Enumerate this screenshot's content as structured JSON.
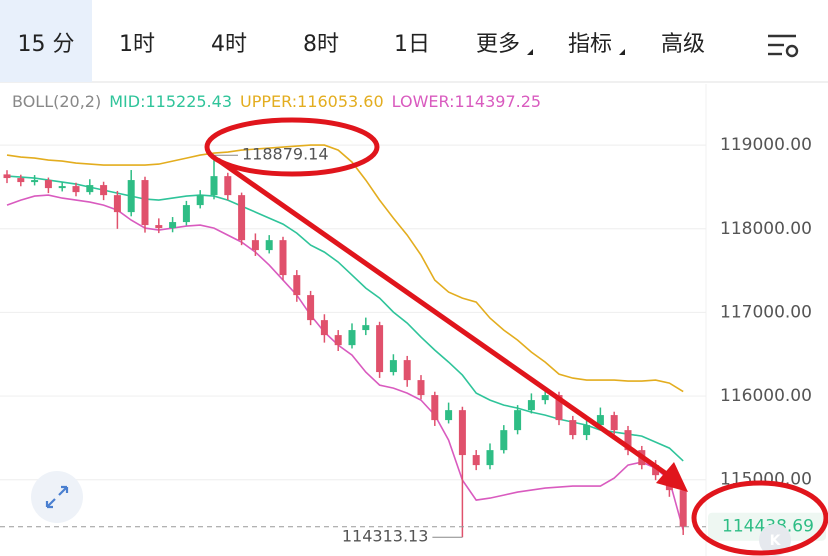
{
  "toolbar": {
    "tabs": [
      "15 分",
      "1时",
      "4时",
      "8时",
      "1日",
      "更多",
      "指标",
      "高级"
    ],
    "selected": 0
  },
  "chart_data": {
    "type": "candlestick",
    "indicator": "BOLL(20,2)",
    "up_color": "#2ebd85",
    "down_color": "#e0516c",
    "open": [
      118650,
      118606,
      118558,
      118582,
      118486,
      118510,
      118438,
      118522,
      118402,
      118199,
      118582,
      118044,
      118008,
      118080,
      118283,
      118402,
      118629,
      118402,
      117864,
      117745,
      117864,
      117446,
      117207,
      116908,
      116729,
      116609,
      116789,
      116848,
      116287,
      116430,
      116191,
      116012,
      115713,
      115832,
      115295,
      115175,
      115354,
      115593,
      115832,
      115952,
      116012,
      115713,
      115534,
      115653,
      115773,
      115593,
      115354,
      115175,
      115055,
      114876
    ],
    "high": [
      118700,
      118646,
      118642,
      118612,
      118560,
      118550,
      118592,
      118562,
      118452,
      118702,
      118622,
      118124,
      118140,
      118333,
      118462,
      118879.14,
      118669,
      118432,
      117944,
      117924,
      117904,
      117506,
      117257,
      116978,
      116789,
      116869,
      116938,
      116888,
      116500,
      116480,
      116251,
      116052,
      115922,
      115872,
      115355,
      115434,
      115653,
      115892,
      116032,
      116082,
      116052,
      115763,
      115723,
      115863,
      115813,
      115643,
      115404,
      115235,
      115105,
      114956
    ],
    "low": [
      118546,
      118508,
      118518,
      118426,
      118446,
      118388,
      118408,
      118342,
      117999,
      118149,
      117954,
      117948,
      117958,
      118040,
      118243,
      118352,
      118342,
      117804,
      117675,
      117705,
      117386,
      117127,
      116848,
      116639,
      116539,
      116569,
      116729,
      116217,
      116247,
      116111,
      115962,
      115643,
      115673,
      114313.13,
      115115,
      115125,
      115314,
      115543,
      115792,
      115902,
      115653,
      115484,
      115474,
      115613,
      115543,
      115294,
      115125,
      114995,
      114796,
      114340
    ],
    "close": [
      118606,
      118558,
      118582,
      118486,
      118510,
      118438,
      118522,
      118402,
      118199,
      118582,
      118044,
      118008,
      118080,
      118283,
      118402,
      118629,
      118402,
      117864,
      117745,
      117864,
      117446,
      117207,
      116908,
      116729,
      116609,
      116789,
      116848,
      116287,
      116430,
      116191,
      116012,
      115713,
      115832,
      115295,
      115175,
      115354,
      115593,
      115832,
      115952,
      116012,
      115713,
      115534,
      115653,
      115773,
      115593,
      115354,
      115175,
      115055,
      114876,
      114438.69
    ],
    "series": [
      {
        "name": "MID",
        "legend": "MID:115225.43",
        "color": "#2fc49a",
        "values": [
          118629,
          118618,
          118606,
          118582,
          118558,
          118534,
          118498,
          118462,
          118426,
          118390,
          118355,
          118343,
          118367,
          118390,
          118402,
          118390,
          118343,
          118271,
          118199,
          118127,
          118056,
          117948,
          117805,
          117721,
          117601,
          117446,
          117291,
          117171,
          117004,
          116872,
          116705,
          116550,
          116406,
          116251,
          116036,
          115952,
          115892,
          115856,
          115809,
          115773,
          115725,
          115689,
          115653,
          115593,
          115569,
          115546,
          115522,
          115450,
          115378,
          115225.43
        ]
      },
      {
        "name": "UPPER",
        "legend": "UPPER:116053.60",
        "color": "#e3ad1f",
        "values": [
          118880,
          118857,
          118845,
          118821,
          118809,
          118785,
          118773,
          118761,
          118761,
          118761,
          118761,
          118773,
          118809,
          118845,
          118880,
          118904,
          118916,
          118940,
          118952,
          118964,
          118976,
          118988,
          119000,
          119000,
          118940,
          118797,
          118582,
          118343,
          118127,
          117924,
          117685,
          117386,
          117243,
          117171,
          117123,
          116932,
          116789,
          116669,
          116526,
          116406,
          116263,
          116215,
          116191,
          116191,
          116191,
          116179,
          116179,
          116191,
          116155,
          116053.6
        ]
      },
      {
        "name": "LOWER",
        "legend": "LOWER:114397.25",
        "color": "#d95bbf",
        "values": [
          118283,
          118343,
          118390,
          118402,
          118366,
          118343,
          118319,
          118283,
          118223,
          118104,
          118008,
          117984,
          118008,
          118032,
          118044,
          118008,
          117924,
          117841,
          117721,
          117566,
          117386,
          117207,
          116968,
          116765,
          116609,
          116490,
          116287,
          116131,
          116095,
          116036,
          115952,
          115773,
          115474,
          114996,
          114757,
          114781,
          114816,
          114852,
          114876,
          114900,
          114912,
          114924,
          114924,
          114924,
          115020,
          115175,
          115211,
          115139,
          114996,
          114397.25
        ]
      }
    ],
    "ylim": [
      114220,
      119300
    ],
    "yticks": [
      {
        "value": 115000,
        "label": "115000.00"
      },
      {
        "value": 116000,
        "label": "116000.00"
      },
      {
        "value": 117000,
        "label": "117000.00"
      },
      {
        "value": 118000,
        "label": "118000.00"
      },
      {
        "value": 119000,
        "label": "119000.00"
      }
    ],
    "grid": true,
    "max_label": 118879.14,
    "min_label": 114313.13,
    "last_price": 114438.69
  }
}
